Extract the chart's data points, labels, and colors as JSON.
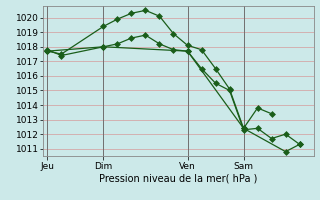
{
  "bg_color": "#cce9e9",
  "grid_color": "#d4a8a8",
  "line_color": "#1a5e1a",
  "marker_color": "#1a5e1a",
  "xlabel": "Pression niveau de la mer( hPa )",
  "ylim": [
    1010.5,
    1020.8
  ],
  "yticks": [
    1011,
    1012,
    1013,
    1014,
    1015,
    1016,
    1017,
    1018,
    1019,
    1020
  ],
  "xtick_labels": [
    "Jeu",
    "Dim",
    "Ven",
    "Sam"
  ],
  "xtick_pos": [
    0,
    4,
    10,
    14
  ],
  "vlines_x": [
    0,
    4,
    10,
    14
  ],
  "series1_x": [
    0,
    1,
    4,
    5,
    6,
    7,
    8,
    9,
    10,
    11,
    12,
    13,
    14,
    15,
    16
  ],
  "series1_y": [
    1017.7,
    1017.5,
    1019.4,
    1019.9,
    1020.3,
    1020.5,
    1020.1,
    1018.9,
    1018.1,
    1017.8,
    1016.5,
    1015.1,
    1012.4,
    1013.8,
    1013.4
  ],
  "series2_x": [
    0,
    1,
    4,
    5,
    6,
    7,
    8,
    9,
    10,
    11,
    12,
    13,
    14,
    15,
    16,
    17,
    18
  ],
  "series2_y": [
    1017.8,
    1017.4,
    1018.0,
    1018.2,
    1018.6,
    1018.8,
    1018.2,
    1017.8,
    1017.7,
    1016.5,
    1015.5,
    1015.0,
    1012.3,
    1012.4,
    1011.7,
    1012.0,
    1011.3
  ],
  "series3_x": [
    0,
    4,
    10,
    14,
    17,
    18
  ],
  "series3_y": [
    1017.7,
    1018.0,
    1017.7,
    1012.4,
    1010.8,
    1011.3
  ],
  "xlim": [
    -0.3,
    19.0
  ],
  "total_x": 18
}
